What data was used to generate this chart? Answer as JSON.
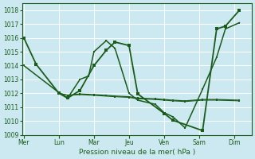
{
  "xlabel": "Pression niveau de la mer( hPa )",
  "background_color": "#cce8f0",
  "grid_color": "#ffffff",
  "line_color": "#1a5c1a",
  "ylim": [
    1009,
    1018.5
  ],
  "yticks": [
    1009,
    1010,
    1011,
    1012,
    1013,
    1014,
    1015,
    1016,
    1017,
    1018
  ],
  "day_labels": [
    "Mer",
    "Lun",
    "Mar",
    "Jeu",
    "Ven",
    "Sam",
    "Dim"
  ],
  "day_positions": [
    0,
    2,
    4,
    6,
    8,
    10,
    12
  ],
  "xlim": [
    -0.1,
    13.0
  ],
  "lines": [
    {
      "x": [
        0,
        0.7,
        2.0,
        2.5,
        3.2,
        4.0,
        4.7,
        5.2,
        6.0,
        6.5,
        8.0,
        8.5,
        10.2,
        11.0,
        11.5,
        12.3
      ],
      "y": [
        1016.0,
        1014.1,
        1012.0,
        1011.65,
        1012.2,
        1014.0,
        1015.1,
        1015.7,
        1015.45,
        1011.95,
        1010.55,
        1010.05,
        1009.3,
        1016.65,
        1016.85,
        1018.0
      ],
      "lw": 1.3,
      "ms": 2.5
    },
    {
      "x": [
        0,
        2.0,
        2.5,
        3.2,
        3.7,
        4.0,
        4.7,
        5.2,
        6.0,
        6.5,
        7.5,
        8.0,
        8.5,
        9.2,
        10.2,
        11.0,
        11.5,
        12.3
      ],
      "y": [
        1014.0,
        1012.05,
        1011.65,
        1013.0,
        1013.25,
        1015.0,
        1015.8,
        1015.25,
        1012.0,
        1011.5,
        1011.2,
        1010.6,
        1010.3,
        1009.5,
        1012.3,
        1014.6,
        1016.65,
        1017.1
      ],
      "lw": 1.1,
      "ms": 2.0
    },
    {
      "x": [
        2.0,
        2.5,
        3.2,
        4.0,
        4.7,
        5.2,
        6.0,
        6.5,
        7.5,
        8.0,
        8.5,
        9.2,
        10.2,
        11.0,
        12.3
      ],
      "y": [
        1012.0,
        1011.85,
        1011.95,
        1011.9,
        1011.85,
        1011.8,
        1011.75,
        1011.65,
        1011.6,
        1011.55,
        1011.5,
        1011.45,
        1011.55,
        1011.55,
        1011.5
      ],
      "lw": 0.9,
      "ms": 1.8
    },
    {
      "x": [
        2.0,
        2.5,
        3.2,
        4.0,
        5.2,
        6.0,
        6.5,
        7.5,
        8.0,
        8.5,
        9.2,
        10.2,
        11.0,
        12.3
      ],
      "y": [
        1012.0,
        1011.85,
        1011.9,
        1011.85,
        1011.75,
        1011.7,
        1011.6,
        1011.55,
        1011.5,
        1011.45,
        1011.4,
        1011.5,
        1011.5,
        1011.45
      ],
      "lw": 0.8,
      "ms": 1.5
    }
  ]
}
